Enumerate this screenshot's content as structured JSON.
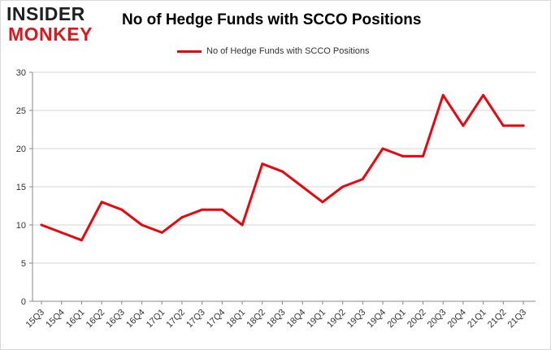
{
  "logo": {
    "line1": "INSIDER",
    "line2": "MONKEY"
  },
  "chart_data": {
    "type": "line",
    "title": "No of Hedge Funds with SCCO Positions",
    "xlabel": "",
    "ylabel": "",
    "categories": [
      "15Q3",
      "15Q4",
      "16Q1",
      "16Q2",
      "16Q3",
      "16Q4",
      "17Q1",
      "17Q2",
      "17Q3",
      "17Q4",
      "18Q1",
      "18Q2",
      "18Q3",
      "18Q4",
      "19Q1",
      "19Q2",
      "19Q3",
      "19Q4",
      "20Q1",
      "20Q2",
      "20Q3",
      "20Q4",
      "21Q1",
      "21Q2",
      "21Q3"
    ],
    "series": [
      {
        "name": "No of Hedge Funds with SCCO Positions",
        "color": "#e8070e",
        "values": [
          10,
          9,
          8,
          13,
          12,
          10,
          9,
          11,
          12,
          12,
          10,
          18,
          17,
          15,
          13,
          15,
          16,
          20,
          19,
          19,
          27,
          23,
          27,
          23,
          23
        ]
      }
    ],
    "ylim": [
      0,
      30
    ],
    "yticks": [
      0,
      5,
      10,
      15,
      20,
      25,
      30
    ],
    "grid": true,
    "legend": "top-center"
  }
}
